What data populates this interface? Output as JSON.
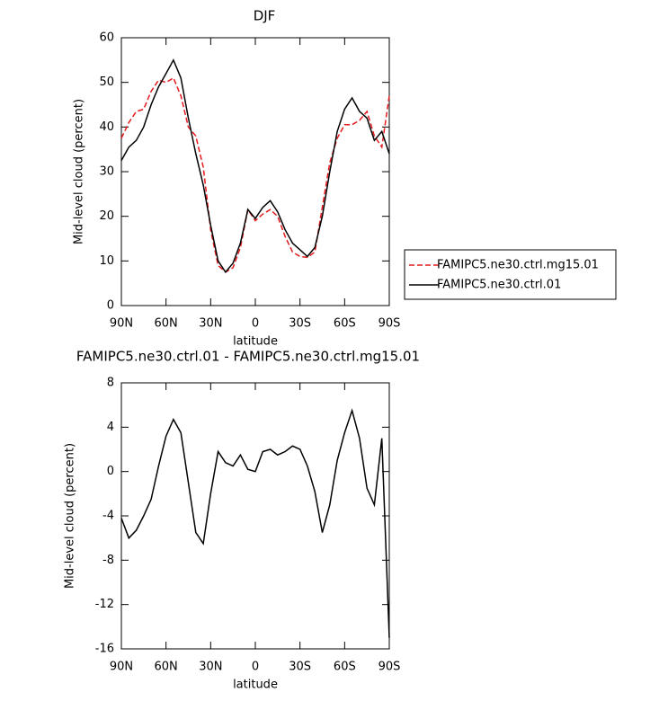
{
  "chart_data": [
    {
      "type": "line",
      "title": "DJF",
      "xlabel": "latitude",
      "ylabel": "Mid-level cloud (percent)",
      "x": [
        90,
        85,
        80,
        75,
        70,
        65,
        60,
        55,
        50,
        45,
        40,
        35,
        30,
        25,
        20,
        15,
        10,
        5,
        0,
        -5,
        -10,
        -15,
        -20,
        -25,
        -30,
        -35,
        -40,
        -45,
        -50,
        -55,
        -60,
        -65,
        -70,
        -75,
        -80,
        -85,
        -90
      ],
      "series": [
        {
          "name": "FAMIPC5.ne30.ctrl.mg15.01",
          "color": "#e41a1c",
          "dashed": true,
          "values": [
            37.5,
            41,
            43.5,
            44,
            48,
            50.5,
            50,
            51,
            47,
            40,
            38,
            31,
            17,
            9,
            7.5,
            8.5,
            13,
            21.5,
            19,
            20.5,
            21.5,
            20,
            15.5,
            12,
            11,
            10.8,
            12,
            22,
            32,
            37.5,
            40.5,
            40.5,
            41.5,
            43.5,
            38,
            35.5,
            47
          ]
        },
        {
          "name": "FAMIPC5.ne30.ctrl.01",
          "color": "#000000",
          "dashed": false,
          "values": [
            32.5,
            35.5,
            37,
            40,
            45,
            49,
            52,
            55,
            51,
            42,
            34,
            27,
            18,
            10,
            7.5,
            9.5,
            14,
            21.5,
            19.5,
            22,
            23.5,
            21,
            17,
            14,
            12.5,
            11,
            13,
            20,
            30,
            39,
            44,
            46.5,
            43.5,
            42,
            37,
            39,
            34
          ]
        }
      ],
      "xlim": [
        90,
        -90
      ],
      "xticks": [
        {
          "value": 90,
          "label": "90N"
        },
        {
          "value": 60,
          "label": "60N"
        },
        {
          "value": 30,
          "label": "30N"
        },
        0,
        {
          "value": -30,
          "label": "30S"
        },
        {
          "value": -60,
          "label": "60S"
        },
        {
          "value": -90,
          "label": "90S"
        }
      ],
      "ylim": [
        0,
        60
      ],
      "yticks": [
        0,
        10,
        20,
        30,
        40,
        50,
        60
      ],
      "legend": "right"
    },
    {
      "type": "line",
      "title": "FAMIPC5.ne30.ctrl.01 - FAMIPC5.ne30.ctrl.mg15.01",
      "xlabel": "latitude",
      "ylabel": "Mid-level cloud (percent)",
      "x": [
        90,
        85,
        80,
        75,
        70,
        65,
        60,
        55,
        50,
        45,
        40,
        35,
        30,
        25,
        20,
        15,
        10,
        5,
        0,
        -5,
        -10,
        -15,
        -20,
        -25,
        -30,
        -35,
        -40,
        -45,
        -50,
        -55,
        -60,
        -65,
        -70,
        -75,
        -80,
        -85,
        -90
      ],
      "series": [
        {
          "color": "#000000",
          "dashed": false,
          "values": [
            -4.2,
            -6,
            -5.3,
            -4,
            -2.5,
            0.5,
            3.2,
            4.7,
            3.5,
            -1,
            -5.5,
            -6.5,
            -2,
            1.8,
            0.8,
            0.5,
            1.5,
            0.2,
            0,
            1.8,
            2,
            1.5,
            1.8,
            2.3,
            2,
            0.5,
            -1.8,
            -5.5,
            -3,
            1,
            3.5,
            5.5,
            3,
            -1.5,
            -3,
            3,
            -15
          ]
        }
      ],
      "xlim": [
        90,
        -90
      ],
      "xticks": [
        {
          "value": 90,
          "label": "90N"
        },
        {
          "value": 60,
          "label": "60N"
        },
        {
          "value": 30,
          "label": "30N"
        },
        0,
        {
          "value": -30,
          "label": "30S"
        },
        {
          "value": -60,
          "label": "60S"
        },
        {
          "value": -90,
          "label": "90S"
        }
      ],
      "ylim": [
        -16,
        8
      ],
      "yticks": [
        -16,
        -12,
        -8,
        -4,
        0,
        4,
        8
      ]
    }
  ]
}
